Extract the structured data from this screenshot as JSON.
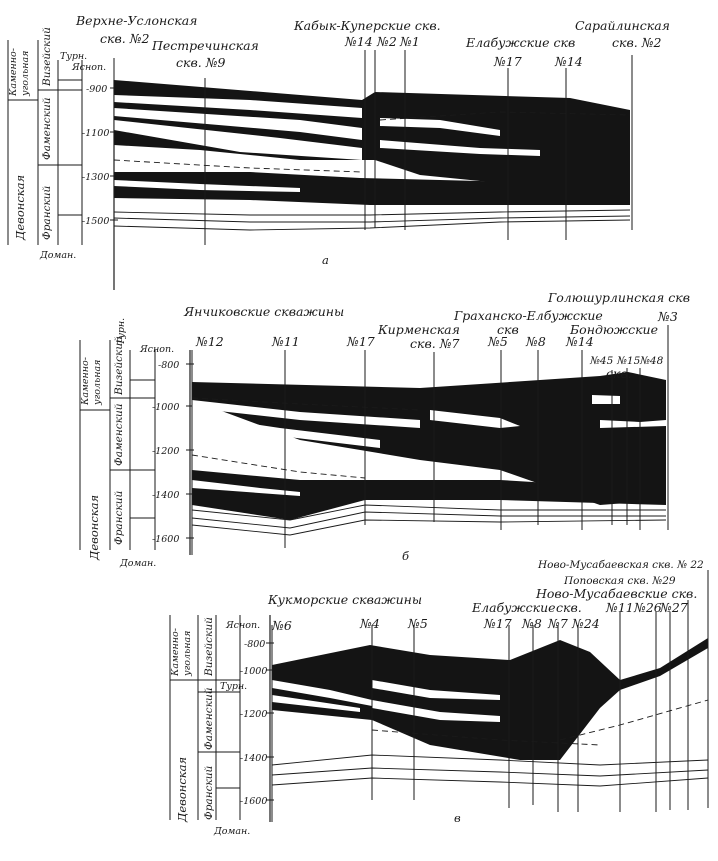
{
  "stratigraphy": {
    "system_devonian": "Девонская",
    "system_carboniferous": "Каменно-угольная",
    "system_carboniferous_line1": "Каменно-",
    "system_carboniferous_line2": "угольная",
    "stage_visean": "Визейский",
    "stage_tournaisian": "Турн.",
    "stage_famennian": "Фаменский",
    "stage_frasnian": "Франский",
    "horizon_yasnopolyansky": "Ясноп.",
    "horizon_domanik": "Доман."
  },
  "panels": [
    {
      "letter": "а",
      "depth_ticks": [
        "-900",
        "-1100",
        "-1300",
        "-1500"
      ],
      "wells": [
        {
          "group": "Верхне-Услонская",
          "label": "скв. №2"
        },
        {
          "group": "Пестречинская",
          "label": "скв. №9"
        },
        {
          "group": "Кабык-Куперские скв.",
          "label": "№14"
        },
        {
          "label": "№2"
        },
        {
          "label": "№1"
        },
        {
          "group": "Елабужские скв",
          "label": "№17"
        },
        {
          "label": "№14"
        },
        {
          "group": "Сарайлинская",
          "label": "скв. №2"
        }
      ]
    },
    {
      "letter": "б",
      "depth_ticks": [
        "-800",
        "-1000",
        "-1200",
        "-1400",
        "-1600"
      ],
      "group_labels": [
        "Янчиковские скважины",
        "Кирменская",
        "скв. №7",
        "Граханско-Елбужские",
        "скв",
        "Голюшурлинская скв",
        "Бондюжские",
        "скв."
      ],
      "wells": [
        "№12",
        "№11",
        "№17",
        "№5",
        "№8",
        "№14",
        "№45",
        "№15",
        "№48",
        "№3"
      ]
    },
    {
      "letter": "в",
      "depth_ticks": [
        "-800",
        "-1000",
        "-1200",
        "-1400",
        "-1600"
      ],
      "group_labels": [
        "Кукморские скважины",
        "Елабужские",
        "скв.",
        "Ново-Мусабаевские скв.",
        "Ново-Мусабаевская скв. № 22",
        "Поповская скв. №29"
      ],
      "wells": [
        "№6",
        "№4",
        "№5",
        "№17",
        "№8",
        "№7",
        "№24",
        "№11",
        "№26",
        "№27"
      ]
    }
  ]
}
